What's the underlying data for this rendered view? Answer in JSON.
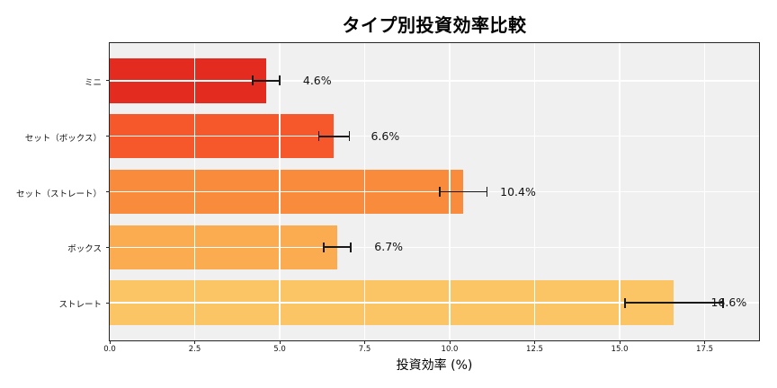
{
  "chart_data": {
    "type": "bar",
    "orientation": "horizontal",
    "title": "タイプ別投資効率比較",
    "xlabel": "投資効率 (%)",
    "ylabel": "",
    "categories": [
      "ミニ",
      "セット（ボックス）",
      "セット（ストレート）",
      "ボックス",
      "ストレート"
    ],
    "values": [
      4.6,
      6.6,
      10.4,
      6.7,
      16.6
    ],
    "errors": [
      0.4,
      0.45,
      0.7,
      0.4,
      1.45
    ],
    "value_labels": [
      "4.6%",
      "6.6%",
      "10.4%",
      "6.7%",
      "16.6%"
    ],
    "bar_colors": [
      "#e32b20",
      "#f7582b",
      "#f98b3c",
      "#fbac51",
      "#fbc464"
    ],
    "xticks": [
      0.0,
      2.5,
      5.0,
      7.5,
      10.0,
      12.5,
      15.0,
      17.5
    ],
    "xtick_labels": [
      "0.0",
      "2.5",
      "5.0",
      "7.5",
      "10.0",
      "12.5",
      "15.0",
      "17.5"
    ],
    "xlim": [
      0,
      19.1
    ],
    "grid": true,
    "legend": "none",
    "plot_bg_color": "#f0f0f0",
    "grid_color": "#ffffff",
    "spine_color": "#262626",
    "error_bar_color": "#1a1a1a",
    "text_color": "#111111"
  }
}
